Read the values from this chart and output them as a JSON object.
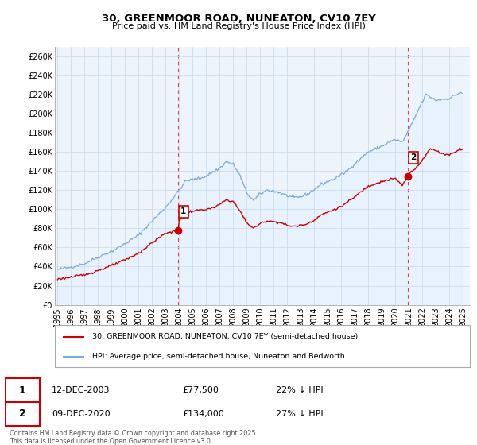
{
  "title": "30, GREENMOOR ROAD, NUNEATON, CV10 7EY",
  "subtitle": "Price paid vs. HM Land Registry's House Price Index (HPI)",
  "legend_line1": "30, GREENMOOR ROAD, NUNEATON, CV10 7EY (semi-detached house)",
  "legend_line2": "HPI: Average price, semi-detached house, Nuneaton and Bedworth",
  "footnote": "Contains HM Land Registry data © Crown copyright and database right 2025.\nThis data is licensed under the Open Government Licence v3.0.",
  "annotation1_date": "12-DEC-2003",
  "annotation1_price": "£77,500",
  "annotation1_hpi": "22% ↓ HPI",
  "annotation2_date": "09-DEC-2020",
  "annotation2_price": "£134,000",
  "annotation2_hpi": "27% ↓ HPI",
  "hpi_color": "#7aaadd",
  "hpi_fill_color": "#ddeeff",
  "price_color": "#cc0000",
  "vline_color": "#dd4444",
  "background_color": "#ffffff",
  "plot_bg_color": "#eef4fb",
  "grid_color": "#c8d8e8",
  "ylim": [
    0,
    270000
  ],
  "yticks": [
    0,
    20000,
    40000,
    60000,
    80000,
    100000,
    120000,
    140000,
    160000,
    180000,
    200000,
    220000,
    240000,
    260000
  ],
  "ytick_labels": [
    "£0",
    "£20K",
    "£40K",
    "£60K",
    "£80K",
    "£100K",
    "£120K",
    "£140K",
    "£160K",
    "£180K",
    "£200K",
    "£220K",
    "£240K",
    "£260K"
  ],
  "sale1_x": 2003.92,
  "sale1_y": 77500,
  "sale2_x": 2020.92,
  "sale2_y": 134000,
  "xlim_min": 1994.8,
  "xlim_max": 2025.5,
  "xtick_years": [
    1995,
    1996,
    1997,
    1998,
    1999,
    2000,
    2001,
    2002,
    2003,
    2004,
    2005,
    2006,
    2007,
    2008,
    2009,
    2010,
    2011,
    2012,
    2013,
    2014,
    2015,
    2016,
    2017,
    2018,
    2019,
    2020,
    2021,
    2022,
    2023,
    2024,
    2025
  ]
}
